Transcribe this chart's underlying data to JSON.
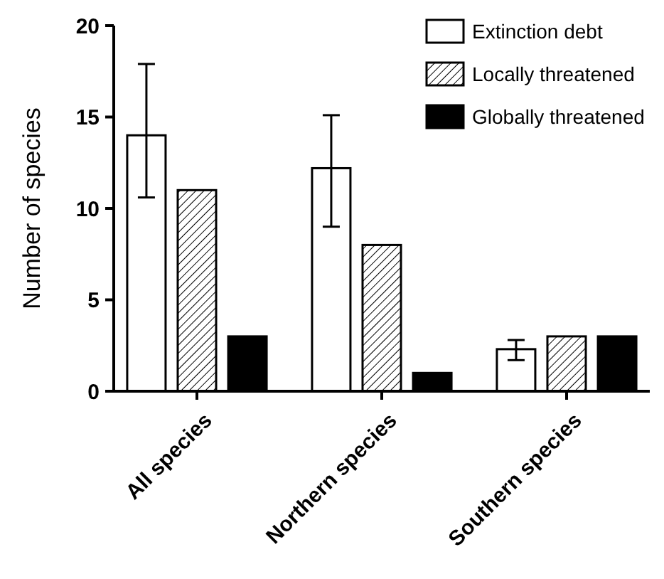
{
  "chart_data": {
    "type": "bar",
    "ylabel": "Number of species",
    "categories": [
      "All species",
      "Northern species",
      "Southern species"
    ],
    "series": [
      {
        "name": "Extinction debt",
        "color": "#ffffff",
        "values": [
          14,
          12.2,
          2.3
        ],
        "errors": [
          [
            10.6,
            17.9
          ],
          [
            9,
            15.1
          ],
          [
            1.7,
            2.8
          ]
        ]
      },
      {
        "name": "Locally threatened",
        "color": "#000000",
        "values": [
          11,
          8,
          3
        ]
      },
      {
        "name": "Globally threatened",
        "color": "#000000",
        "values": [
          3,
          1,
          3
        ]
      }
    ],
    "ylim": [
      0,
      20
    ],
    "yticks": [
      0,
      5,
      10,
      15,
      20
    ],
    "grid": false,
    "legend": "top right"
  }
}
